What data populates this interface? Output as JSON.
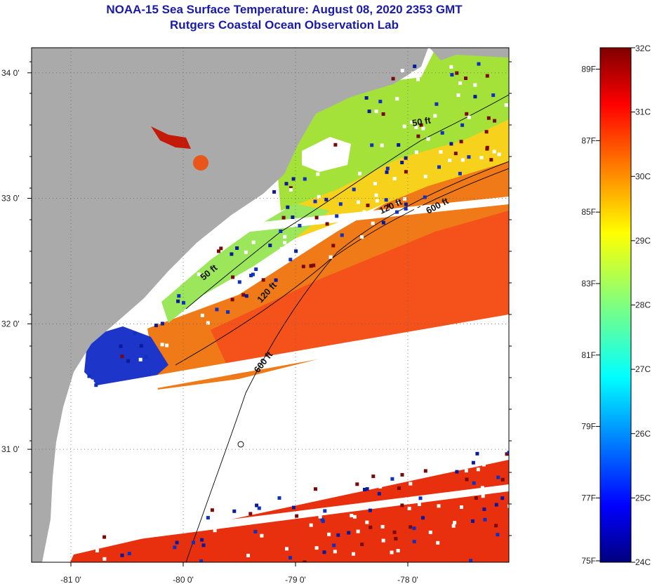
{
  "header": {
    "title": "NOAA-15 Sea Surface Temperature:  August 08, 2020 2353 GMT",
    "subtitle": "Rutgers Coastal Ocean Observation Lab"
  },
  "map": {
    "lon_range": [
      -81.35,
      -77.1
    ],
    "lat_range": [
      30.1,
      34.2
    ],
    "lat_ticks": [
      {
        "value": 34,
        "label": "34 0'"
      },
      {
        "value": 33,
        "label": "33 0'"
      },
      {
        "value": 32,
        "label": "32 0'"
      },
      {
        "value": 31,
        "label": "31 0'"
      }
    ],
    "lon_ticks": [
      {
        "value": -81,
        "label": "-81 0'"
      },
      {
        "value": -80,
        "label": "-80 0'"
      },
      {
        "value": -79,
        "label": "-79 0'"
      },
      {
        "value": -78,
        "label": "-78 0'"
      }
    ],
    "isobath_labels": [
      {
        "text": "50 ft",
        "depth_ft": 50
      },
      {
        "text": "50 ft",
        "depth_ft": 50
      },
      {
        "text": "120 ft",
        "depth_ft": 120
      },
      {
        "text": "120 ft",
        "depth_ft": 120
      },
      {
        "text": "600 ft",
        "depth_ft": 600
      },
      {
        "text": "600 ft",
        "depth_ft": 600
      }
    ],
    "colors": {
      "land": "#aaaaaa",
      "no_data": "#ffffff",
      "warm": "#e23a0e",
      "cool": "#9be63c"
    }
  },
  "colorbar": {
    "min_c": 24,
    "max_c": 32,
    "celsius_labels": [
      "32C",
      "31C",
      "30C",
      "29C",
      "28C",
      "27C",
      "26C",
      "25C",
      "24C"
    ],
    "fahrenheit_labels": [
      "89F",
      "87F",
      "85F",
      "83F",
      "81F",
      "79F",
      "77F",
      "75F"
    ]
  }
}
